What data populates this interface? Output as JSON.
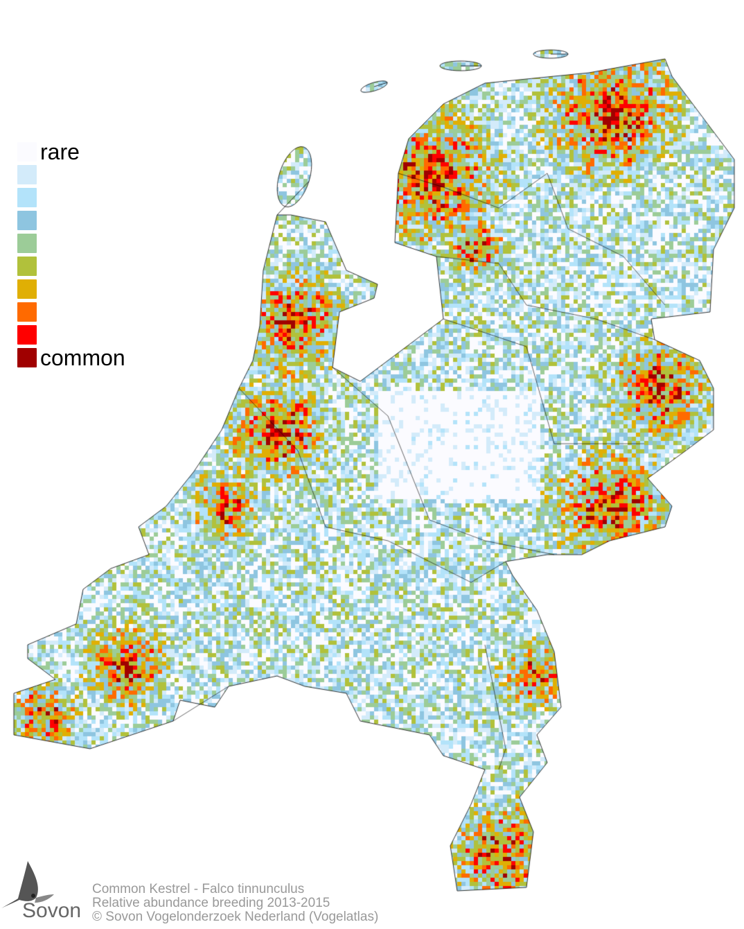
{
  "legend": {
    "top_label": "rare",
    "bottom_label": "common",
    "colors": [
      "#fbfbff",
      "#d3ebfa",
      "#b3e3fa",
      "#8ec5e0",
      "#9ccc98",
      "#b1c13b",
      "#e0af04",
      "#ff6a00",
      "#ff0000",
      "#a00000"
    ]
  },
  "caption": {
    "line1": "Common Kestrel - Falco tinnunculus",
    "line2": "Relative abundance breeding 2013-2015",
    "line3": "© Sovon Vogelonderzoek Nederland (Vogelatlas)"
  },
  "logo": {
    "text": "Sovon",
    "icon": "swallow-icon"
  }
}
